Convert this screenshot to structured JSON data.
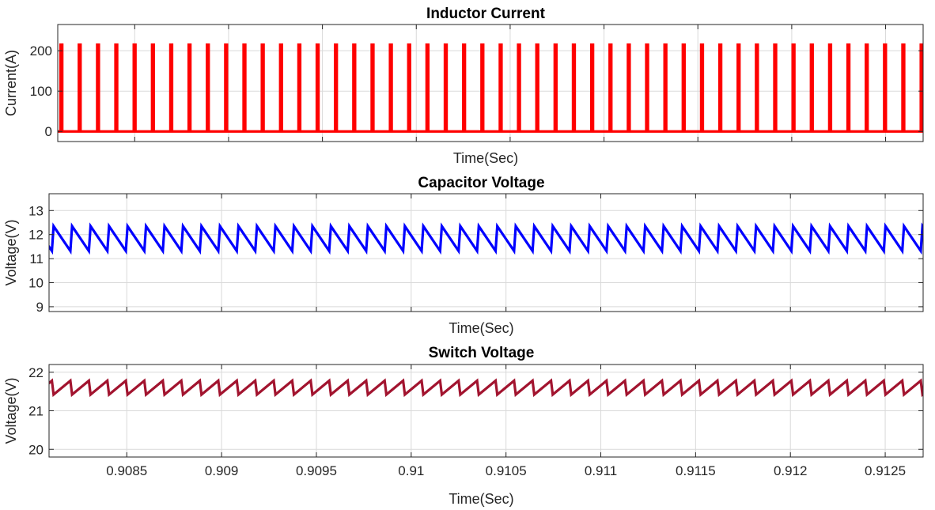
{
  "chart_data": [
    {
      "type": "line",
      "title": "Inductor Current",
      "xlabel": "Time(Sec)",
      "ylabel": "Current(A)",
      "xlim": [
        0.90809,
        0.9127
      ],
      "ylim": [
        -25,
        265
      ],
      "yticks": [
        0,
        100,
        200
      ],
      "xticks": [
        0.9085,
        0.909,
        0.9095,
        0.91,
        0.9105,
        0.911,
        0.9115,
        0.912,
        0.9125
      ],
      "show_xtick_labels": false,
      "grid": true,
      "color": "#ff0000",
      "series": [
        {
          "waveform": "pulse",
          "period": 9.75e-05,
          "first_edge": 0.908105,
          "pulse_width": 9e-06,
          "low": 0,
          "high": 215
        }
      ]
    },
    {
      "type": "line",
      "title": "Capacitor Voltage",
      "xlabel": "Time(Sec)",
      "ylabel": "Voltage(V)",
      "xlim": [
        0.90809,
        0.9127
      ],
      "ylim": [
        8.8,
        13.7
      ],
      "yticks": [
        9,
        10,
        11,
        12,
        13
      ],
      "xticks": [
        0.9085,
        0.909,
        0.9095,
        0.91,
        0.9105,
        0.911,
        0.9115,
        0.912,
        0.9125
      ],
      "show_xtick_labels": false,
      "grid": true,
      "color": "#0000ff",
      "series": [
        {
          "waveform": "sawtooth-down",
          "period": 9.75e-05,
          "first_edge": 0.908105,
          "pulse_width": 9e-06,
          "low": 11.32,
          "high": 12.35
        }
      ]
    },
    {
      "type": "line",
      "title": "Switch Voltage",
      "xlabel": "Time(Sec)",
      "ylabel": "Voltage(V)",
      "xlim": [
        0.90809,
        0.9127
      ],
      "ylim": [
        19.8,
        22.2
      ],
      "yticks": [
        20,
        21,
        22
      ],
      "xticks": [
        0.9085,
        0.909,
        0.9095,
        0.91,
        0.9105,
        0.911,
        0.9115,
        0.912,
        0.9125
      ],
      "xticklabels": [
        "0.9085",
        "0.909",
        "0.9095",
        "0.91",
        "0.9105",
        "0.911",
        "0.9115",
        "0.912",
        "0.9125"
      ],
      "show_xtick_labels": true,
      "grid": true,
      "color": "#a2142f",
      "series": [
        {
          "waveform": "sawtooth-up",
          "period": 9.75e-05,
          "first_edge": 0.908105,
          "pulse_width": 9e-06,
          "low": 21.42,
          "high": 21.78
        }
      ]
    }
  ]
}
